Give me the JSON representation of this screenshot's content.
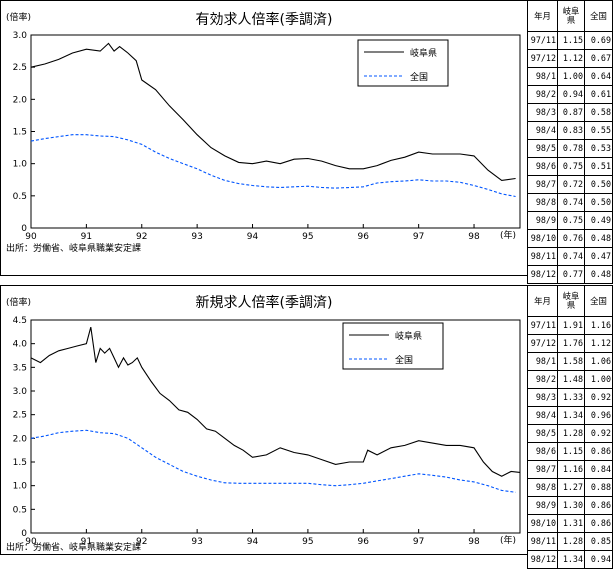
{
  "charts": [
    {
      "chart_data": {
        "type": "line",
        "title": "有効求人倍率(季調済)",
        "ylabel": "(倍率)",
        "xlabel": "(年)",
        "source": "出所：労働省、岐阜県職業安定課",
        "ylim": [
          0,
          3.0
        ],
        "yticks": [
          "0",
          "0.5",
          "1.0",
          "1.5",
          "2.0",
          "2.5",
          "3.0"
        ],
        "xticks": [
          "90",
          "91",
          "92",
          "93",
          "94",
          "95",
          "96",
          "97",
          "98"
        ],
        "xlim": [
          1990.0,
          1998.83
        ],
        "legend_position": "top-right",
        "series": [
          {
            "name": "岐阜県",
            "style": "solid",
            "color": "#000000",
            "x": [
              1990.0,
              1990.25,
              1990.5,
              1990.75,
              1991.0,
              1991.25,
              1991.4,
              1991.5,
              1991.6,
              1991.75,
              1991.9,
              1992.0,
              1992.25,
              1992.5,
              1992.75,
              1993.0,
              1993.25,
              1993.5,
              1993.75,
              1994.0,
              1994.25,
              1994.5,
              1994.75,
              1995.0,
              1995.25,
              1995.5,
              1995.75,
              1996.0,
              1996.25,
              1996.5,
              1996.75,
              1997.0,
              1997.25,
              1997.5,
              1997.75,
              1998.0,
              1998.25,
              1998.5,
              1998.75
            ],
            "y": [
              2.5,
              2.55,
              2.62,
              2.72,
              2.78,
              2.75,
              2.87,
              2.75,
              2.82,
              2.72,
              2.6,
              2.3,
              2.15,
              1.9,
              1.68,
              1.45,
              1.25,
              1.12,
              1.02,
              1.0,
              1.04,
              1.0,
              1.07,
              1.08,
              1.04,
              0.97,
              0.92,
              0.92,
              0.97,
              1.05,
              1.1,
              1.18,
              1.15,
              1.15,
              1.15,
              1.12,
              0.9,
              0.74,
              0.77
            ]
          },
          {
            "name": "全国",
            "style": "dashed",
            "color": "#0055ff",
            "x": [
              1990.0,
              1990.25,
              1990.5,
              1990.75,
              1991.0,
              1991.25,
              1991.5,
              1991.75,
              1992.0,
              1992.25,
              1992.5,
              1992.75,
              1993.0,
              1993.25,
              1993.5,
              1993.75,
              1994.0,
              1994.25,
              1994.5,
              1994.75,
              1995.0,
              1995.25,
              1995.5,
              1995.75,
              1996.0,
              1996.25,
              1996.5,
              1996.75,
              1997.0,
              1997.25,
              1997.5,
              1997.75,
              1998.0,
              1998.25,
              1998.5,
              1998.75
            ],
            "y": [
              1.35,
              1.39,
              1.42,
              1.45,
              1.45,
              1.43,
              1.42,
              1.37,
              1.3,
              1.18,
              1.08,
              1.0,
              0.92,
              0.82,
              0.74,
              0.69,
              0.66,
              0.64,
              0.63,
              0.64,
              0.65,
              0.63,
              0.62,
              0.63,
              0.64,
              0.7,
              0.72,
              0.73,
              0.75,
              0.73,
              0.73,
              0.71,
              0.66,
              0.6,
              0.53,
              0.49
            ]
          }
        ]
      },
      "table": {
        "headers": [
          "年月",
          "岐阜県",
          "全国"
        ],
        "rows": [
          [
            "97/11",
            "1.15",
            "0.69"
          ],
          [
            "97/12",
            "1.12",
            "0.67"
          ],
          [
            "98/1",
            "1.00",
            "0.64"
          ],
          [
            "98/2",
            "0.94",
            "0.61"
          ],
          [
            "98/3",
            "0.87",
            "0.58"
          ],
          [
            "98/4",
            "0.83",
            "0.55"
          ],
          [
            "98/5",
            "0.78",
            "0.53"
          ],
          [
            "98/6",
            "0.75",
            "0.51"
          ],
          [
            "98/7",
            "0.72",
            "0.50"
          ],
          [
            "98/8",
            "0.74",
            "0.50"
          ],
          [
            "98/9",
            "0.75",
            "0.49"
          ],
          [
            "98/10",
            "0.76",
            "0.48"
          ],
          [
            "98/11",
            "0.74",
            "0.47"
          ],
          [
            "98/12",
            "0.77",
            "0.48"
          ]
        ]
      }
    },
    {
      "chart_data": {
        "type": "line",
        "title": "新規求人倍率(季調済)",
        "ylabel": "(倍率)",
        "xlabel": "(年)",
        "source": "出所：労働省、岐阜県職業安定課",
        "ylim": [
          0,
          4.5
        ],
        "yticks": [
          "0",
          "0.5",
          "1.0",
          "1.5",
          "2.0",
          "2.5",
          "3.0",
          "3.5",
          "4.0",
          "4.5"
        ],
        "xticks": [
          "90",
          "91",
          "92",
          "93",
          "94",
          "95",
          "96",
          "97",
          "98"
        ],
        "xlim": [
          1990.0,
          1998.83
        ],
        "legend_position": "top-right",
        "series": [
          {
            "name": "岐阜県",
            "style": "solid",
            "color": "#000000",
            "x": [
              1990.0,
              1990.17,
              1990.33,
              1990.5,
              1990.67,
              1990.83,
              1991.0,
              1991.08,
              1991.17,
              1991.25,
              1991.33,
              1991.42,
              1991.5,
              1991.58,
              1991.67,
              1991.75,
              1991.83,
              1991.92,
              1992.0,
              1992.17,
              1992.33,
              1992.5,
              1992.67,
              1992.83,
              1993.0,
              1993.17,
              1993.33,
              1993.5,
              1993.67,
              1993.83,
              1994.0,
              1994.25,
              1994.5,
              1994.75,
              1995.0,
              1995.25,
              1995.5,
              1995.75,
              1996.0,
              1996.08,
              1996.25,
              1996.5,
              1996.75,
              1997.0,
              1997.25,
              1997.5,
              1997.75,
              1998.0,
              1998.17,
              1998.33,
              1998.5,
              1998.67,
              1998.83
            ],
            "y": [
              3.7,
              3.6,
              3.75,
              3.85,
              3.9,
              3.95,
              4.0,
              4.35,
              3.6,
              3.9,
              3.8,
              3.9,
              3.7,
              3.5,
              3.7,
              3.55,
              3.6,
              3.7,
              3.5,
              3.2,
              2.95,
              2.8,
              2.6,
              2.55,
              2.4,
              2.2,
              2.15,
              2.0,
              1.85,
              1.75,
              1.6,
              1.65,
              1.8,
              1.7,
              1.65,
              1.55,
              1.45,
              1.5,
              1.5,
              1.75,
              1.65,
              1.8,
              1.85,
              1.95,
              1.9,
              1.85,
              1.85,
              1.8,
              1.5,
              1.3,
              1.2,
              1.3,
              1.28
            ]
          },
          {
            "name": "全国",
            "style": "dashed",
            "color": "#0055ff",
            "x": [
              1990.0,
              1990.25,
              1990.5,
              1990.75,
              1991.0,
              1991.25,
              1991.5,
              1991.75,
              1992.0,
              1992.25,
              1992.5,
              1992.75,
              1993.0,
              1993.25,
              1993.5,
              1993.75,
              1994.0,
              1994.25,
              1994.5,
              1994.75,
              1995.0,
              1995.25,
              1995.5,
              1995.75,
              1996.0,
              1996.25,
              1996.5,
              1996.75,
              1997.0,
              1997.25,
              1997.5,
              1997.75,
              1998.0,
              1998.25,
              1998.5,
              1998.75
            ],
            "y": [
              2.0,
              2.05,
              2.12,
              2.15,
              2.17,
              2.12,
              2.1,
              2.0,
              1.8,
              1.6,
              1.45,
              1.3,
              1.2,
              1.12,
              1.06,
              1.05,
              1.05,
              1.05,
              1.05,
              1.05,
              1.05,
              1.02,
              1.0,
              1.02,
              1.05,
              1.1,
              1.15,
              1.2,
              1.25,
              1.22,
              1.18,
              1.12,
              1.08,
              1.0,
              0.9,
              0.86
            ]
          }
        ]
      },
      "table": {
        "headers": [
          "年月",
          "岐阜県",
          "全国"
        ],
        "rows": [
          [
            "97/11",
            "1.91",
            "1.16"
          ],
          [
            "97/12",
            "1.76",
            "1.12"
          ],
          [
            "98/1",
            "1.58",
            "1.06"
          ],
          [
            "98/2",
            "1.48",
            "1.00"
          ],
          [
            "98/3",
            "1.33",
            "0.92"
          ],
          [
            "98/4",
            "1.34",
            "0.96"
          ],
          [
            "98/5",
            "1.28",
            "0.92"
          ],
          [
            "98/6",
            "1.15",
            "0.86"
          ],
          [
            "98/7",
            "1.16",
            "0.84"
          ],
          [
            "98/8",
            "1.27",
            "0.88"
          ],
          [
            "98/9",
            "1.30",
            "0.86"
          ],
          [
            "98/10",
            "1.31",
            "0.86"
          ],
          [
            "98/11",
            "1.28",
            "0.85"
          ],
          [
            "98/12",
            "1.34",
            "0.94"
          ]
        ]
      }
    }
  ]
}
